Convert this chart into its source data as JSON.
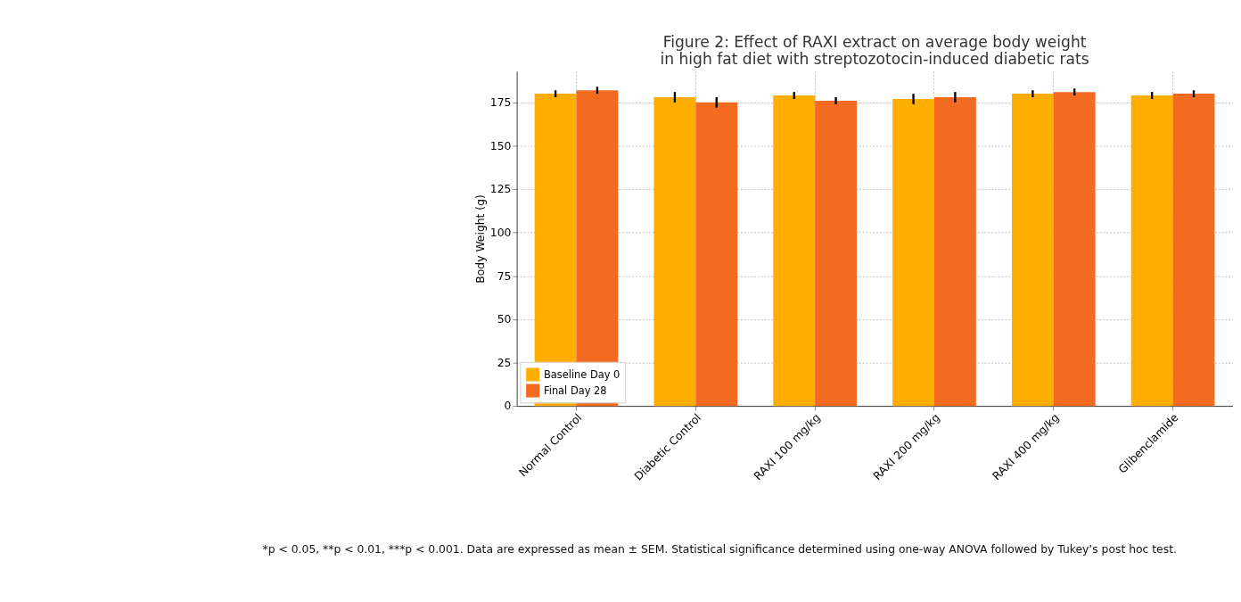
{
  "chart_data": {
    "type": "bar",
    "title": "Figure 2: Effect of RAXI extract on average body weight\nin high fat diet with streptozotocin-induced diabetic rats",
    "ylabel": "Body Weight (g)",
    "categories": [
      "Normal Control",
      "Diabetic Control",
      "RAXI 100 mg/kg",
      "RAXI 200 mg/kg",
      "RAXI 400 mg/kg",
      "Glibenclamide"
    ],
    "series": [
      {
        "name": "Baseline Day 0",
        "color": "#ffae00",
        "values": [
          180,
          178,
          179,
          177,
          180,
          179
        ],
        "errors": [
          2,
          3,
          2,
          3,
          2,
          2
        ]
      },
      {
        "name": "Final Day 28",
        "color": "#f26b21",
        "values": [
          182,
          175,
          176,
          178,
          181,
          180
        ],
        "errors": [
          2,
          3,
          2,
          3,
          2,
          2
        ]
      }
    ],
    "ylim": [
      0,
      193
    ],
    "yticks": [
      0,
      25,
      50,
      75,
      100,
      125,
      150,
      175
    ],
    "grid": true,
    "legend": "bottom left",
    "annotations": [
      "*p < 0.05, **p < 0.01, ***p < 0.001. Data are expressed as mean ± SEM. Statistical significance determined using one-way ANOVA followed by Tukey’s post hoc test."
    ]
  }
}
